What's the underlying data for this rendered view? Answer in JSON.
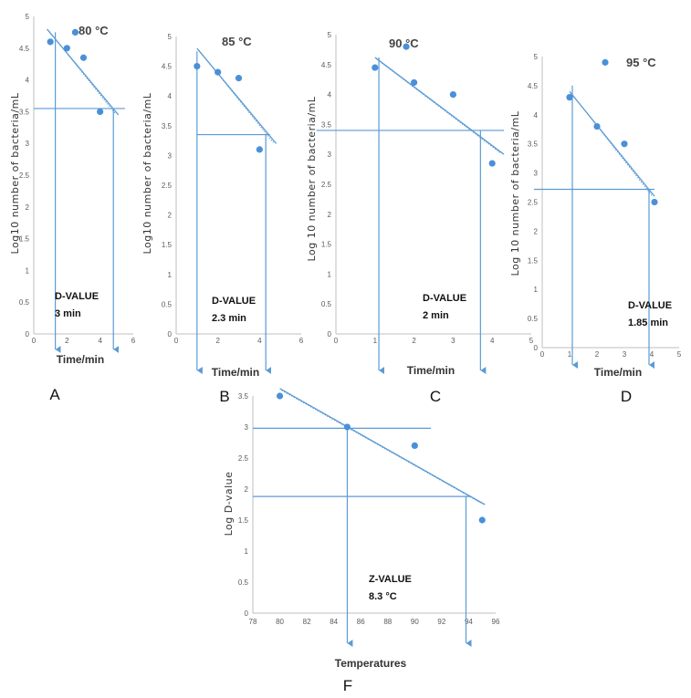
{
  "colors": {
    "point": "#4a90d9",
    "line": "#5b9bd5",
    "axis": "#bfbfbf",
    "text": "#333333"
  },
  "chart_data": [
    {
      "id": "A",
      "type": "scatter",
      "panel_label": "A",
      "title": "80 °C",
      "xlabel": "Time/min",
      "ylabel": "Log10 number of bacteria/mL",
      "xlim": [
        0,
        6
      ],
      "ylim": [
        0,
        5
      ],
      "xticks": [
        0,
        2,
        4,
        6
      ],
      "yticks": [
        0,
        0.5,
        1,
        1.5,
        2,
        2.5,
        3,
        3.5,
        4,
        4.5,
        5
      ],
      "x": [
        1,
        2,
        2.5,
        3,
        4
      ],
      "y": [
        4.6,
        4.5,
        4.75,
        4.35,
        3.5
      ],
      "trendline": {
        "x": [
          0.8,
          5.1
        ],
        "y": [
          4.8,
          3.45
        ]
      },
      "hline": {
        "y": 3.55,
        "x": [
          0,
          5.5
        ]
      },
      "vlines": [
        {
          "x": 1.3,
          "y_top": 4.75
        },
        {
          "x": 4.8,
          "y_top": 3.55
        }
      ],
      "annotation": [
        "D-VALUE",
        "3 min"
      ]
    },
    {
      "id": "B",
      "type": "scatter",
      "panel_label": "B",
      "title": "85 °C",
      "xlabel": "Time/min",
      "ylabel": "Log10 number of bacteria/mL",
      "xlim": [
        0,
        6
      ],
      "ylim": [
        0,
        5
      ],
      "xticks": [
        0,
        2,
        4,
        6
      ],
      "yticks": [
        0,
        0.5,
        1,
        1.5,
        2,
        2.5,
        3,
        3.5,
        4,
        4.5,
        5
      ],
      "x": [
        1,
        2,
        3,
        4
      ],
      "y": [
        4.5,
        4.4,
        4.3,
        3.1
      ],
      "trendline": {
        "x": [
          1,
          4.8
        ],
        "y": [
          4.8,
          3.2
        ]
      },
      "hline": {
        "y": 3.35,
        "x": [
          1,
          4.5
        ]
      },
      "vlines": [
        {
          "x": 1,
          "y_top": 4.75
        },
        {
          "x": 4.3,
          "y_top": 3.35
        }
      ],
      "annotation": [
        "D-VALUE",
        "2.3 min"
      ]
    },
    {
      "id": "C",
      "type": "scatter",
      "panel_label": "C",
      "title": "90 °C",
      "xlabel": "Time/min",
      "ylabel": "Log 10 number of bacteria/mL",
      "xlim": [
        0,
        5
      ],
      "ylim": [
        0,
        5
      ],
      "xticks": [
        0,
        1,
        2,
        3,
        4,
        5
      ],
      "yticks": [
        0,
        0.5,
        1,
        1.5,
        2,
        2.5,
        3,
        3.5,
        4,
        4.5,
        5
      ],
      "x": [
        1,
        1.8,
        2,
        3,
        4
      ],
      "y": [
        4.45,
        4.8,
        4.2,
        4.0,
        2.85
      ],
      "trendline": {
        "x": [
          1,
          4.3
        ],
        "y": [
          4.62,
          3.0
        ]
      },
      "hline": {
        "y": 3.4,
        "x": [
          -0.5,
          4.3
        ]
      },
      "vlines": [
        {
          "x": 1.1,
          "y_top": 4.62
        },
        {
          "x": 3.7,
          "y_top": 3.4
        }
      ],
      "annotation": [
        "D-VALUE",
        "2 min"
      ]
    },
    {
      "id": "D",
      "type": "scatter",
      "panel_label": "D",
      "title": "95 °C",
      "xlabel": "Time/min",
      "ylabel": "Log 10 number of bacteria/mL",
      "xlim": [
        0,
        5
      ],
      "ylim": [
        0,
        5
      ],
      "xticks": [
        0,
        1,
        2,
        3,
        4,
        5
      ],
      "yticks": [
        0,
        0.5,
        1,
        1.5,
        2,
        2.5,
        3,
        3.5,
        4,
        4.5,
        5
      ],
      "x": [
        1,
        2,
        2.3,
        3,
        4.1
      ],
      "y": [
        4.3,
        3.8,
        4.9,
        3.5,
        2.5
      ],
      "trendline": {
        "x": [
          1,
          4.1
        ],
        "y": [
          4.4,
          2.6
        ]
      },
      "hline": {
        "y": 2.72,
        "x": [
          -0.3,
          4.1
        ]
      },
      "vlines": [
        {
          "x": 1.1,
          "y_top": 4.5
        },
        {
          "x": 3.9,
          "y_top": 2.72
        }
      ],
      "annotation": [
        "D-VALUE",
        "1.85 min"
      ]
    },
    {
      "id": "F",
      "type": "scatter",
      "panel_label": "F",
      "title": "",
      "xlabel": "Temperatures",
      "ylabel": "Log D-value",
      "xlim": [
        78,
        96
      ],
      "ylim": [
        0,
        3.5
      ],
      "xticks": [
        78,
        80,
        82,
        84,
        86,
        88,
        90,
        92,
        94,
        96
      ],
      "yticks": [
        0,
        0.5,
        1,
        1.5,
        2,
        2.5,
        3,
        3.5
      ],
      "x": [
        80,
        85,
        90,
        95
      ],
      "y": [
        3.5,
        3.0,
        2.7,
        1.5
      ],
      "trendline": {
        "x": [
          80,
          95.2
        ],
        "y": [
          3.62,
          1.75
        ]
      },
      "hline": [
        {
          "y": 2.98,
          "x": [
            78,
            91.2
          ]
        },
        {
          "y": 1.88,
          "x": [
            78,
            94.2
          ]
        }
      ],
      "vlines": [
        {
          "x": 85,
          "y_top": 3.0
        },
        {
          "x": 93.8,
          "y_top": 1.88
        }
      ],
      "annotation": [
        "Z-VALUE",
        "8.3 °C"
      ]
    }
  ]
}
